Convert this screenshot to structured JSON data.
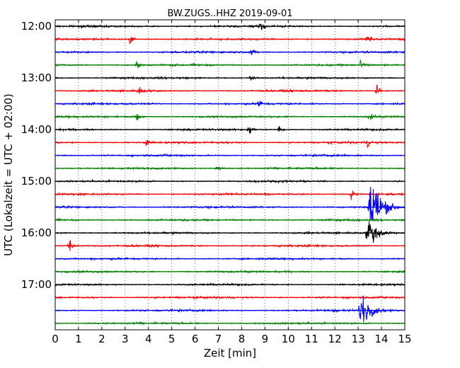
{
  "chart_data": {
    "type": "line",
    "title": "BW.ZUGS..HHZ 2019-09-01",
    "xlabel": "Zeit  [min]",
    "ylabel": "UTC (Lokalzeit = UTC + 02:00)",
    "xlim": [
      0,
      15
    ],
    "x_ticks": [
      0,
      1,
      2,
      3,
      4,
      5,
      6,
      7,
      8,
      9,
      10,
      11,
      12,
      13,
      14,
      15
    ],
    "y_tick_labels": [
      "12:00",
      "13:00",
      "14:00",
      "15:00",
      "16:00",
      "17:00"
    ],
    "grid": "vertical-dotted",
    "trace_start_time": "12:00",
    "trace_interval_min": 15,
    "trace_count": 24,
    "trace_colors": [
      "#000000",
      "#ff0000",
      "#0000ff",
      "#008000"
    ],
    "events": [
      {
        "trace": 0,
        "t": 8.8,
        "amp": 0.5
      },
      {
        "trace": 1,
        "t": 3.2,
        "amp": 0.55
      },
      {
        "trace": 1,
        "t": 13.4,
        "amp": 0.55
      },
      {
        "trace": 2,
        "t": 8.4,
        "amp": 0.45
      },
      {
        "trace": 3,
        "t": 3.5,
        "amp": 0.45
      },
      {
        "trace": 3,
        "t": 13.1,
        "amp": 0.45
      },
      {
        "trace": 4,
        "t": 8.4,
        "amp": 0.4
      },
      {
        "trace": 5,
        "t": 3.6,
        "amp": 0.5
      },
      {
        "trace": 5,
        "t": 13.8,
        "amp": 0.55
      },
      {
        "trace": 6,
        "t": 8.7,
        "amp": 0.55
      },
      {
        "trace": 7,
        "t": 3.5,
        "amp": 0.45
      },
      {
        "trace": 7,
        "t": 13.5,
        "amp": 0.45
      },
      {
        "trace": 8,
        "t": 8.3,
        "amp": 0.6
      },
      {
        "trace": 8,
        "t": 9.6,
        "amp": 0.4
      },
      {
        "trace": 9,
        "t": 3.9,
        "amp": 0.4
      },
      {
        "trace": 9,
        "t": 13.4,
        "amp": 0.45
      },
      {
        "trace": 11,
        "t": 6.9,
        "amp": 0.4
      },
      {
        "trace": 13,
        "t": 12.7,
        "amp": 0.55
      },
      {
        "trace": 14,
        "t": 13.5,
        "amp": 3.8
      },
      {
        "trace": 16,
        "t": 13.4,
        "amp": 1.6
      },
      {
        "trace": 17,
        "t": 0.6,
        "amp": 0.9
      },
      {
        "trace": 22,
        "t": 13.1,
        "amp": 1.7
      },
      {
        "trace": 22,
        "t": 11.9,
        "amp": 0.3
      }
    ]
  }
}
